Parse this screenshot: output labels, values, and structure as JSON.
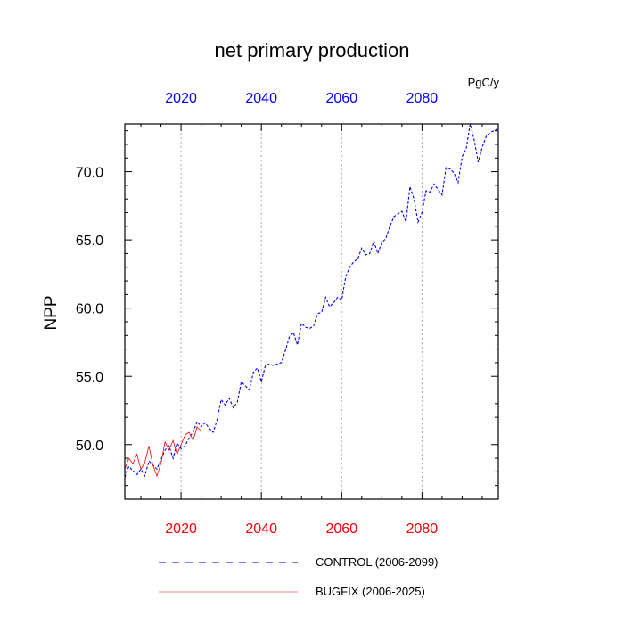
{
  "chart_data": {
    "type": "line",
    "title": "net primary production",
    "units_label": "PgC/y",
    "ylabel": "NPP",
    "xlabel": "",
    "xlim": [
      2006,
      2099
    ],
    "ylim": [
      46.0,
      73.5
    ],
    "x_ticks": [
      2020,
      2040,
      2060,
      2080
    ],
    "x_tick_labels": [
      "2020",
      "2040",
      "2060",
      "2080"
    ],
    "y_ticks": [
      50,
      55,
      60,
      65,
      70
    ],
    "y_tick_labels": [
      "50.0",
      "55.0",
      "60.0",
      "65.0",
      "70.0"
    ],
    "grid": "vertical dotted at major x ticks",
    "top_axis_color": "#0000ff",
    "bottom_axis_color": "#ff0000",
    "legend_position": "bottom",
    "series": [
      {
        "name": "CONTROL (2006-2099)",
        "color": "#0000ff",
        "style": "dashed",
        "x": [
          2006,
          2007,
          2008,
          2009,
          2010,
          2011,
          2012,
          2013,
          2014,
          2015,
          2016,
          2017,
          2018,
          2019,
          2020,
          2021,
          2022,
          2023,
          2024,
          2025,
          2026,
          2027,
          2028,
          2029,
          2030,
          2031,
          2032,
          2033,
          2034,
          2035,
          2036,
          2037,
          2038,
          2039,
          2040,
          2041,
          2042,
          2043,
          2044,
          2045,
          2046,
          2047,
          2048,
          2049,
          2050,
          2051,
          2052,
          2053,
          2054,
          2055,
          2056,
          2057,
          2058,
          2059,
          2060,
          2061,
          2062,
          2063,
          2064,
          2065,
          2066,
          2067,
          2068,
          2069,
          2070,
          2071,
          2072,
          2073,
          2074,
          2075,
          2076,
          2077,
          2078,
          2079,
          2080,
          2081,
          2082,
          2083,
          2084,
          2085,
          2086,
          2087,
          2088,
          2089,
          2090,
          2091,
          2092,
          2093,
          2094,
          2095,
          2096,
          2097,
          2098,
          2099
        ],
        "values": [
          47.6,
          48.4,
          48.1,
          47.8,
          48.2,
          47.7,
          48.8,
          48.5,
          48.2,
          48.9,
          49.6,
          49.9,
          49.0,
          50.1,
          49.7,
          49.9,
          50.5,
          50.9,
          51.7,
          51.3,
          51.6,
          51.2,
          50.9,
          51.8,
          53.3,
          52.9,
          53.4,
          52.7,
          53.1,
          54.6,
          54.3,
          54.0,
          55.3,
          55.6,
          54.6,
          55.8,
          55.9,
          55.8,
          55.9,
          56.0,
          56.9,
          57.9,
          58.2,
          57.3,
          58.9,
          58.6,
          58.5,
          58.7,
          59.6,
          59.7,
          60.8,
          60.1,
          60.4,
          60.8,
          60.6,
          62.3,
          63.0,
          63.4,
          63.6,
          64.4,
          63.9,
          64.0,
          64.9,
          64.0,
          64.8,
          65.1,
          66.0,
          66.7,
          66.9,
          67.1,
          66.3,
          68.9,
          68.0,
          66.3,
          67.0,
          68.6,
          68.5,
          69.1,
          68.7,
          68.3,
          70.3,
          70.2,
          69.9,
          69.2,
          71.1,
          71.7,
          73.5,
          72.3,
          70.7,
          71.8,
          72.6,
          72.9,
          73.0,
          73.2
        ]
      },
      {
        "name": "BUGFIX (2006-2025)",
        "color": "#ff0000",
        "style": "solid",
        "x": [
          2006,
          2007,
          2008,
          2009,
          2010,
          2011,
          2012,
          2013,
          2014,
          2015,
          2016,
          2017,
          2018,
          2019,
          2020,
          2021,
          2022,
          2023,
          2024,
          2025
        ],
        "values": [
          48.2,
          49.0,
          48.6,
          49.3,
          48.2,
          48.7,
          49.9,
          48.5,
          47.7,
          48.6,
          50.2,
          49.6,
          50.3,
          49.3,
          50.0,
          50.7,
          50.9,
          50.3,
          51.3,
          51.0
        ]
      }
    ]
  }
}
